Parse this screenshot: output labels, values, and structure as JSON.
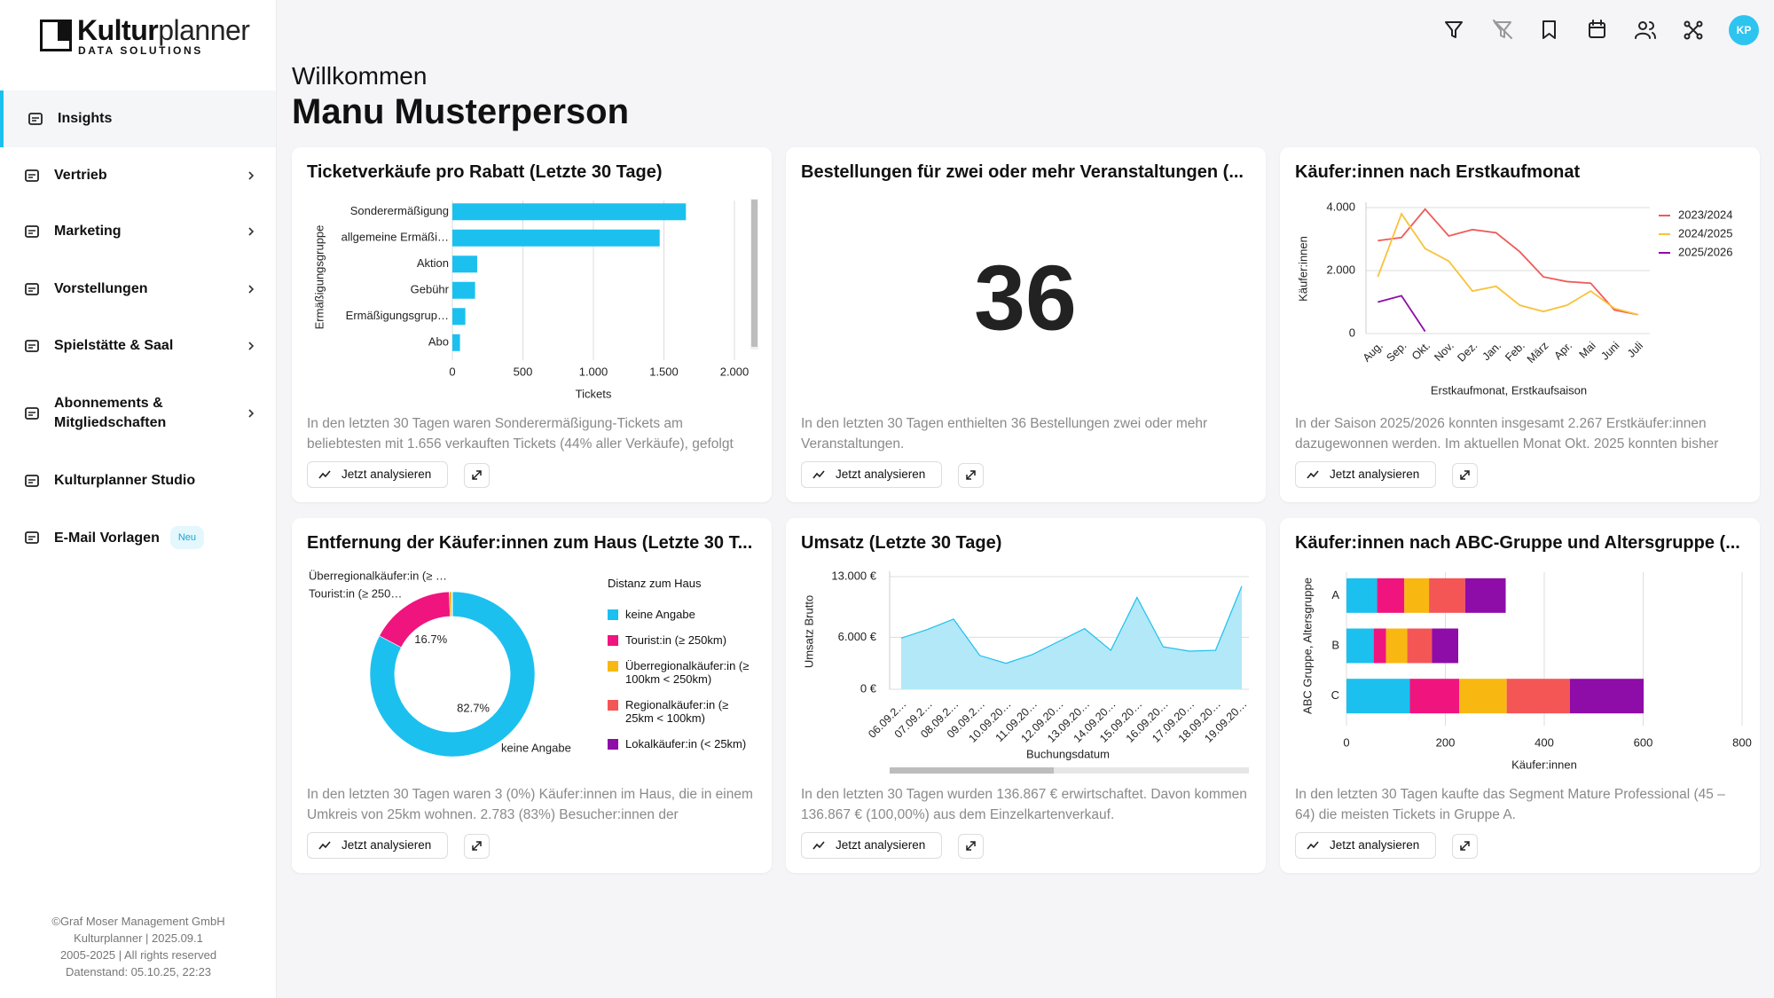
{
  "sidebar": {
    "logo": {
      "bold": "Kultur",
      "light": "planner",
      "subtitle": "DATA SOLUTIONS"
    },
    "nav": [
      {
        "label": "Insights",
        "active": true,
        "submenu": false
      },
      {
        "label": "Vertrieb",
        "submenu": true
      },
      {
        "label": "Marketing",
        "submenu": true
      },
      {
        "label": "Vorstellungen",
        "submenu": true
      },
      {
        "label": "Spielstätte & Saal",
        "submenu": true
      },
      {
        "label": "Abonnements & Mitgliedschaften",
        "submenu": true
      },
      {
        "label": "Kulturplanner Studio",
        "submenu": false
      },
      {
        "label": "E-Mail Vorlagen",
        "submenu": false,
        "badge": "Neu"
      }
    ],
    "footer": [
      "©Graf Moser Management GmbH",
      "Kulturplanner | 2025.09.1",
      "2005-2025 | All rights reserved",
      "Datenstand: 05.10.25, 22:23"
    ]
  },
  "header": {
    "greeting": "Willkommen",
    "name": "Manu Musterperson",
    "avatar": "KP"
  },
  "chart_data": [
    {
      "type": "bar",
      "orientation": "horizontal",
      "title": "Ticketverkäufe pro Rabatt (Letzte 30 Tage)",
      "categories": [
        "Sonderermäßigung",
        "allgemeine Ermäßi…",
        "Aktion",
        "Gebühr",
        "Ermäßigungsgrup…",
        "Abo"
      ],
      "values": [
        1656,
        1470,
        176,
        161,
        92,
        54
      ],
      "color": "#1cc0ef",
      "xlim": [
        0,
        2000
      ],
      "xticks": [
        0,
        500,
        {
          "value": 1000,
          "label": "1.000"
        },
        {
          "value": 1500,
          "label": "1.500"
        },
        {
          "value": 2000,
          "label": "2.000"
        }
      ],
      "xlabel": "Tickets",
      "ylabel": "Ermäßigungsgruppe",
      "grid": true,
      "description": "In den letzten 30 Tagen waren Sonderermäßigung-Tickets am beliebtesten mit 1.656 verkauften Tickets (44% aller Verkäufe), gefolgt",
      "button": "Jetzt analysieren"
    },
    {
      "type": "kpi",
      "title": "Bestellungen für zwei oder mehr Veranstaltungen (...",
      "value": 36,
      "description": "In den letzten 30 Tagen enthielten 36 Bestellungen zwei oder mehr Veranstaltungen.",
      "button": "Jetzt analysieren"
    },
    {
      "type": "line",
      "title": "Käufer:innen nach Erstkaufmonat",
      "categories": [
        "Aug.",
        "Sep.",
        "Okt.",
        "Nov.",
        "Dez.",
        "Jan.",
        "Feb.",
        "März",
        "Apr.",
        "Mai",
        "Juni",
        "Juli"
      ],
      "series": [
        {
          "name": "2023/2024",
          "color": "#f05a5a",
          "values": [
            2950,
            3050,
            3950,
            3100,
            3300,
            3200,
            2600,
            1800,
            1650,
            1600,
            750,
            600
          ]
        },
        {
          "name": "2024/2025",
          "color": "#f8c23a",
          "values": [
            1800,
            3800,
            2700,
            2300,
            1350,
            1500,
            900,
            700,
            900,
            1350,
            800,
            600
          ]
        },
        {
          "name": "2025/2026",
          "color": "#8e0ca8",
          "values": [
            1000,
            1200,
            67,
            null,
            null,
            null,
            null,
            null,
            null,
            null,
            null,
            null
          ]
        }
      ],
      "ylim": [
        0,
        4000
      ],
      "yticks": [
        0,
        {
          "value": 2000,
          "label": "2.000"
        },
        {
          "value": 4000,
          "label": "4.000"
        }
      ],
      "xlabel": "Erstkaufmonat, Erstkaufsaison",
      "ylabel": "Käufer:innen",
      "grid": true,
      "legend": "right",
      "description": "In der Saison 2025/2026 konnten insgesamt 2.267 Erstkäufer:innen dazugewonnen werden. Im aktuellen Monat Okt. 2025 konnten bisher",
      "button": "Jetzt analysieren"
    },
    {
      "type": "pie",
      "hole": 0.7,
      "title": "Entfernung der Käufer:innen zum Haus (Letzte 30 T...",
      "categories": [
        "keine Angabe",
        "Tourist:in  (≥ 250km)",
        "Überregionalkäufer:in (≥ 100km < 250km)",
        "Regionalkäufer:in (≥ 25km < 100km)",
        "Lokalkäufer:in (< 25km)"
      ],
      "values": [
        82.7,
        16.7,
        0.5,
        0.05,
        0.05
      ],
      "value_labels": [
        "82.7%",
        "16.7%",
        null,
        null,
        null
      ],
      "slice_labels": [
        "keine Angabe",
        "Tourist:in  (≥ 250…",
        "Überregionalkäufer:in (≥ …",
        null,
        null
      ],
      "colors": [
        "#1cc0ef",
        "#f0147f",
        "#f8b811",
        "#f45656",
        "#8e0ca8"
      ],
      "legend_title": "Distanz zum Haus",
      "legend": "right",
      "description": "In den letzten 30 Tagen waren 3 (0%) Käufer:innen im Haus, die in einem Umkreis von 25km wohnen. 2.783 (83%) Besucher:innen der",
      "button": "Jetzt analysieren"
    },
    {
      "type": "area",
      "title": "Umsatz (Letzte 30 Tage)",
      "categories": [
        "06.09.2…",
        "07.09.2…",
        "08.09.2…",
        "09.09.2…",
        "10.09.20…",
        "11.09.20…",
        "12.09.20…",
        "13.09.20…",
        "14.09.20…",
        "15.09.20…",
        "16.09.20…",
        "17.09.20…",
        "18.09.20…",
        "19.09.20…"
      ],
      "values": [
        5900,
        6900,
        8100,
        3900,
        3000,
        4000,
        5500,
        7000,
        4500,
        10600,
        4900,
        4400,
        4500,
        11900
      ],
      "color": "#1cc0ef",
      "ylim": [
        0,
        13000
      ],
      "yticks": [
        {
          "value": 0,
          "label": "0  €"
        },
        {
          "value": 6000,
          "label": "6.000  €"
        },
        {
          "value": 13000,
          "label": "13.000  €"
        }
      ],
      "xlabel": "Buchungsdatum",
      "ylabel": "Umsatz Brutto",
      "grid": true,
      "description": "In den letzten 30 Tagen wurden 136.867 € erwirtschaftet. Davon kommen 136.867 € (100,00%) aus dem Einzelkartenverkauf.",
      "button": "Jetzt analysieren"
    },
    {
      "type": "bar",
      "orientation": "horizontal",
      "stacked": true,
      "title": "Käufer:innen nach ABC-Gruppe und Altersgruppe (...",
      "categories": [
        "A",
        "B",
        "C"
      ],
      "series": [
        {
          "color": "#1cc0ef",
          "values": [
            62,
            55,
            128
          ]
        },
        {
          "color": "#f0147f",
          "values": [
            55,
            25,
            100
          ]
        },
        {
          "color": "#f8b811",
          "values": [
            50,
            43,
            96
          ]
        },
        {
          "color": "#f45656",
          "values": [
            73,
            50,
            128
          ]
        },
        {
          "color": "#8e0ca8",
          "values": [
            82,
            53,
            149
          ]
        }
      ],
      "xlim": [
        0,
        800
      ],
      "xticks": [
        0,
        200,
        400,
        600,
        800
      ],
      "xlabel": "Käufer:innen",
      "ylabel": "ABC Gruppe, Altersgruppe",
      "grid": true,
      "description": "In den letzten 30 Tagen kaufte das Segment Mature Professional (45 – 64) die meisten Tickets in Gruppe A.",
      "button": "Jetzt analysieren"
    }
  ]
}
